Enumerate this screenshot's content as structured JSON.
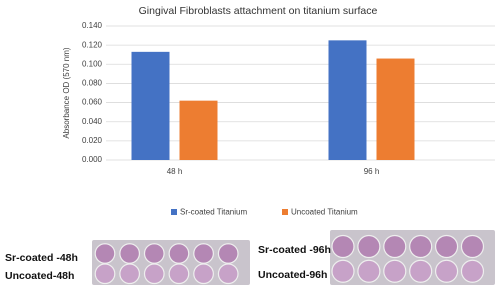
{
  "chart_data": {
    "type": "bar",
    "title": "Gingival Fibroblasts attachment  on titanium surface",
    "y_label": "Absorbance OD (570 nm)",
    "categories": [
      "48 h",
      "96 h"
    ],
    "series": [
      {
        "name": "Sr-coated Titanium",
        "color": "#4472c4",
        "values": [
          0.113,
          0.125
        ]
      },
      {
        "name": "Uncoated Titanium",
        "color": "#ed7d31",
        "values": [
          0.062,
          0.106
        ]
      }
    ],
    "ylim": [
      0,
      0.14
    ],
    "yticks": [
      {
        "value": 0,
        "label": "0.000"
      },
      {
        "value": 0.02,
        "label": "0.020"
      },
      {
        "value": 0.04,
        "label": "0.040"
      },
      {
        "value": 0.06,
        "label": "0.060"
      },
      {
        "value": 0.08,
        "label": "0.080"
      },
      {
        "value": 0.1,
        "label": "0.100"
      },
      {
        "value": 0.12,
        "label": "0.120"
      },
      {
        "value": 0.14,
        "label": "0.140"
      }
    ],
    "grid": true,
    "legend": "bottom"
  },
  "photos": {
    "panels": [
      {
        "labels": [
          "Sr-coated -48h",
          "Uncoated-48h"
        ]
      },
      {
        "labels": [
          "Sr-coated -96h",
          "Uncoated-96h"
        ]
      }
    ]
  }
}
